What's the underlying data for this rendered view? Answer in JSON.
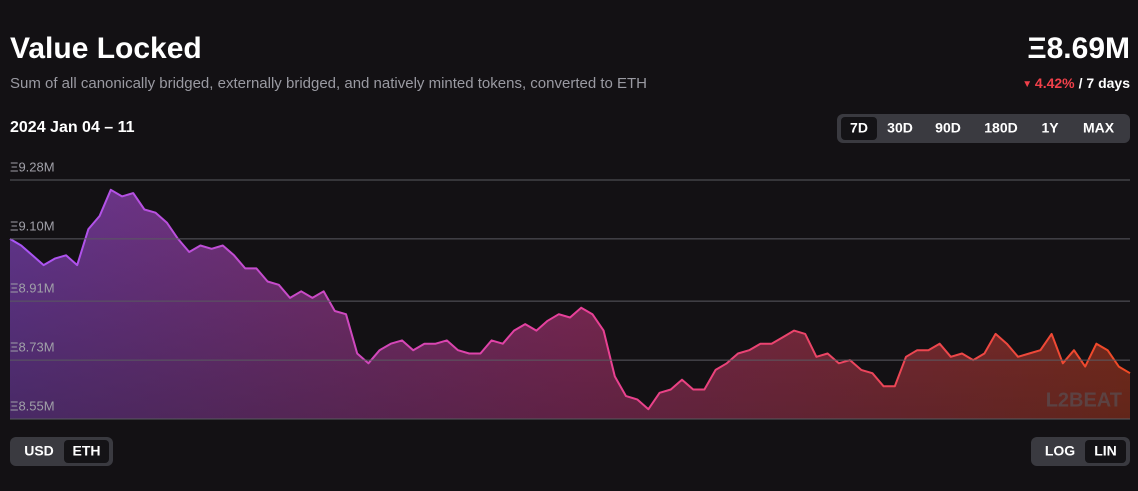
{
  "chart_data": {
    "type": "area",
    "title": "Value Locked",
    "subtitle": "Sum of all canonically bridged, externally bridged, and natively minted tokens, converted to ETH",
    "date_range": "2024 Jan 04 – 11",
    "values": [
      9.1,
      9.08,
      9.05,
      9.02,
      9.04,
      9.05,
      9.02,
      9.13,
      9.17,
      9.25,
      9.23,
      9.24,
      9.19,
      9.18,
      9.15,
      9.1,
      9.06,
      9.08,
      9.07,
      9.08,
      9.05,
      9.01,
      9.01,
      8.97,
      8.96,
      8.92,
      8.94,
      8.92,
      8.94,
      8.88,
      8.87,
      8.75,
      8.72,
      8.76,
      8.78,
      8.79,
      8.76,
      8.78,
      8.78,
      8.79,
      8.76,
      8.75,
      8.75,
      8.79,
      8.78,
      8.82,
      8.84,
      8.82,
      8.85,
      8.87,
      8.86,
      8.89,
      8.87,
      8.82,
      8.68,
      8.62,
      8.61,
      8.58,
      8.63,
      8.64,
      8.67,
      8.64,
      8.64,
      8.7,
      8.72,
      8.75,
      8.76,
      8.78,
      8.78,
      8.8,
      8.82,
      8.81,
      8.74,
      8.75,
      8.72,
      8.73,
      8.7,
      8.69,
      8.65,
      8.65,
      8.74,
      8.76,
      8.76,
      8.78,
      8.74,
      8.75,
      8.73,
      8.75,
      8.81,
      8.78,
      8.74,
      8.75,
      8.76,
      8.81,
      8.72,
      8.76,
      8.71,
      8.78,
      8.76,
      8.71,
      8.69
    ],
    "colors": [
      "#a855f7",
      "#e8409a",
      "#f04a24"
    ],
    "ylim": [
      8.55,
      9.28
    ],
    "yticks": [
      {
        "value": 8.55,
        "label": "Ξ8.55M"
      },
      {
        "value": 8.73,
        "label": "Ξ8.73M"
      },
      {
        "value": 8.91,
        "label": "Ξ8.91M"
      },
      {
        "value": 9.1,
        "label": "Ξ9.10M"
      },
      {
        "value": 9.28,
        "label": "Ξ9.28M"
      }
    ],
    "grid": true,
    "log_scale": false
  },
  "summary": {
    "value": "Ξ8.69M",
    "change": "4.42%",
    "period": "/ 7 days"
  },
  "watermark": "L2BEAT",
  "controls": {
    "ranges": {
      "options": [
        "7D",
        "30D",
        "90D",
        "180D",
        "1Y",
        "MAX"
      ],
      "selected": 0
    },
    "units": {
      "options": [
        "USD",
        "ETH"
      ],
      "selected": 1
    },
    "scales": {
      "options": [
        "LOG",
        "LIN"
      ],
      "selected": 1
    }
  }
}
